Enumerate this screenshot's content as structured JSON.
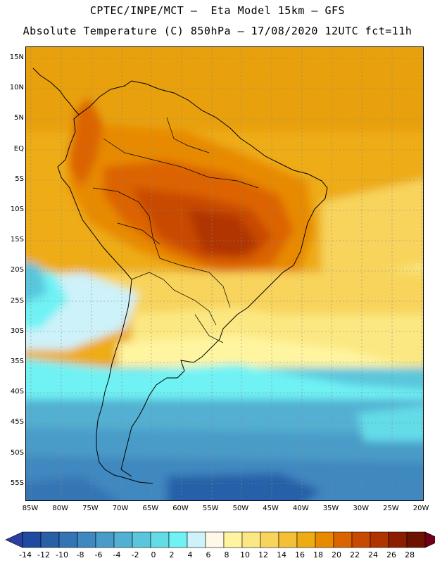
{
  "header": {
    "title_line1": "CPTEC/INPE/MCT –  Eta Model 15km – GFS",
    "title_line2": "Absolute Temperature (C) 850hPa – 17/08/2020 12UTC fct=11h"
  },
  "map": {
    "lat_ticks": [
      "15N",
      "10N",
      "5N",
      "EQ",
      "5S",
      "10S",
      "15S",
      "20S",
      "25S",
      "30S",
      "35S",
      "40S",
      "45S",
      "50S",
      "55S"
    ],
    "lon_ticks": [
      "85W",
      "80W",
      "75W",
      "70W",
      "65W",
      "60W",
      "55W",
      "50W",
      "45W",
      "40W",
      "35W",
      "30W",
      "25W",
      "20W"
    ]
  },
  "legend": {
    "labels": [
      "-14",
      "-12",
      "-10",
      "-8",
      "-6",
      "-4",
      "-2",
      "0",
      "2",
      "4",
      "6",
      "8",
      "10",
      "12",
      "14",
      "16",
      "18",
      "20",
      "22",
      "24",
      "26",
      "28"
    ],
    "colors": [
      "#1f4aa0",
      "#2860a8",
      "#3474b4",
      "#3f88c0",
      "#4a9cc8",
      "#52b0d2",
      "#5ac6dc",
      "#64dce8",
      "#70f2f4",
      "#cdf2fa",
      "#fff8e6",
      "#fff5a0",
      "#fbe882",
      "#f8d45c",
      "#f3c038",
      "#eeac14",
      "#e88a00",
      "#dc6400",
      "#c84a00",
      "#b03400",
      "#8c1e00",
      "#6e1200"
    ],
    "under_color": "#2a3fa0",
    "over_color": "#700018"
  }
}
